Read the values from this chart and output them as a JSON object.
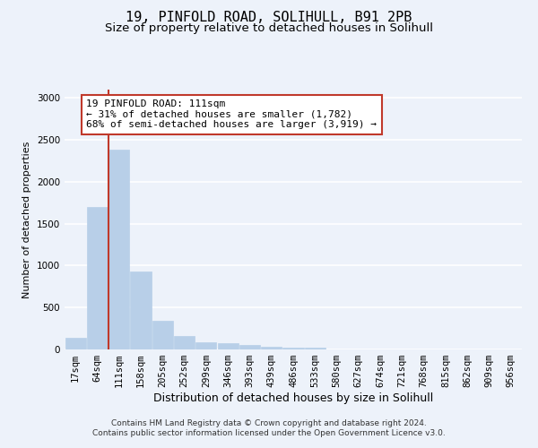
{
  "title1": "19, PINFOLD ROAD, SOLIHULL, B91 2PB",
  "title2": "Size of property relative to detached houses in Solihull",
  "xlabel": "Distribution of detached houses by size in Solihull",
  "ylabel": "Number of detached properties",
  "bin_labels": [
    "17sqm",
    "64sqm",
    "111sqm",
    "158sqm",
    "205sqm",
    "252sqm",
    "299sqm",
    "346sqm",
    "393sqm",
    "439sqm",
    "486sqm",
    "533sqm",
    "580sqm",
    "627sqm",
    "674sqm",
    "721sqm",
    "768sqm",
    "815sqm",
    "862sqm",
    "909sqm",
    "956sqm"
  ],
  "bar_heights": [
    140,
    1700,
    2380,
    930,
    340,
    160,
    90,
    70,
    50,
    30,
    25,
    20,
    0,
    0,
    0,
    0,
    0,
    0,
    0,
    0,
    0
  ],
  "bar_color": "#b8cfe8",
  "vline_x": 2,
  "vline_color": "#c0392b",
  "annotation_text": "19 PINFOLD ROAD: 111sqm\n← 31% of detached houses are smaller (1,782)\n68% of semi-detached houses are larger (3,919) →",
  "annotation_box_color": "#ffffff",
  "annotation_box_edge": "#c0392b",
  "ylim": [
    0,
    3100
  ],
  "yticks": [
    0,
    500,
    1000,
    1500,
    2000,
    2500,
    3000
  ],
  "footer_text": "Contains HM Land Registry data © Crown copyright and database right 2024.\nContains public sector information licensed under the Open Government Licence v3.0.",
  "background_color": "#edf2fa",
  "grid_color": "#ffffff",
  "title1_fontsize": 11,
  "title2_fontsize": 9.5,
  "xlabel_fontsize": 9,
  "ylabel_fontsize": 8,
  "tick_fontsize": 7.5,
  "annotation_fontsize": 8,
  "footer_fontsize": 6.5
}
